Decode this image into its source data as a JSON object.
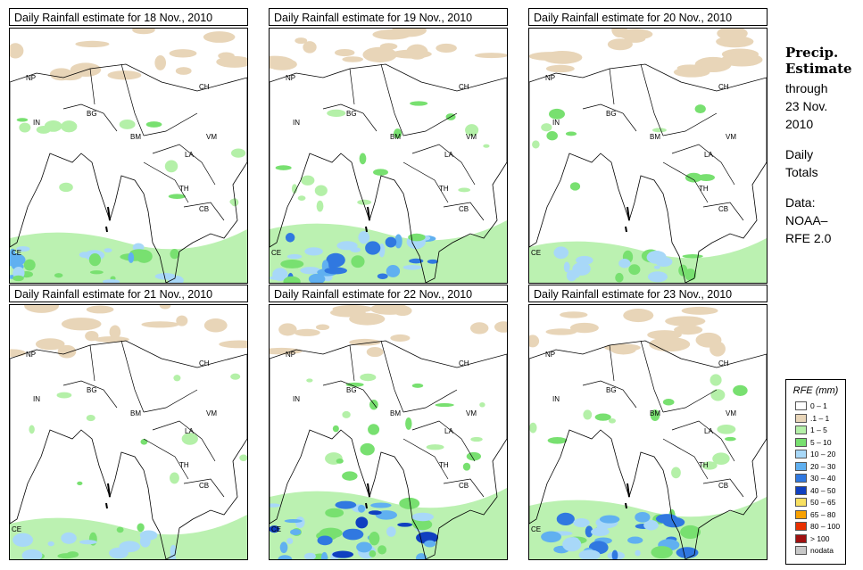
{
  "panels": [
    {
      "title": "Daily Rainfall estimate for  18 Nov., 2010",
      "intensity": 1
    },
    {
      "title": "Daily Rainfall estimate for  19 Nov., 2010",
      "intensity": 2
    },
    {
      "title": "Daily Rainfall estimate for  20 Nov., 2010",
      "intensity": 0
    },
    {
      "title": "Daily Rainfall estimate for  21 Nov., 2010",
      "intensity": 0
    },
    {
      "title": "Daily Rainfall estimate for  22 Nov., 2010",
      "intensity": 3
    },
    {
      "title": "Daily Rainfall estimate for  23 Nov., 2010",
      "intensity": 2
    }
  ],
  "country_labels": [
    "NP",
    "CH",
    "IN",
    "BG",
    "BM",
    "VM",
    "LA",
    "TH",
    "CB",
    "CE"
  ],
  "side": {
    "title_line1": "Precip.",
    "title_line2": "Estimate",
    "through": "through",
    "date_line1": "23 Nov.",
    "date_line2": "2010",
    "daily_line1": "Daily",
    "daily_line2": "Totals",
    "data_line1": "Data:",
    "data_line2": "NOAA–",
    "data_line3": "RFE 2.0"
  },
  "legend": {
    "title": "RFE (mm)",
    "items": [
      {
        "label": "0 – 1",
        "color": "#ffffff"
      },
      {
        "label": ".1 – 1",
        "color": "#e8d5b8"
      },
      {
        "label": "1 – 5",
        "color": "#b4f0a8"
      },
      {
        "label": "5 – 10",
        "color": "#78e070"
      },
      {
        "label": "10 – 20",
        "color": "#a8d8f8"
      },
      {
        "label": "20 – 30",
        "color": "#60b0f0"
      },
      {
        "label": "30 – 40",
        "color": "#3078e0"
      },
      {
        "label": "40 – 50",
        "color": "#1040c0"
      },
      {
        "label": "50 – 65",
        "color": "#f8e060"
      },
      {
        "label": "65 – 80",
        "color": "#f8a000"
      },
      {
        "label": "80 – 100",
        "color": "#e83000"
      },
      {
        "label": "> 100",
        "color": "#a01010"
      },
      {
        "label": "nodata",
        "color": "#c8c8c8"
      }
    ]
  }
}
